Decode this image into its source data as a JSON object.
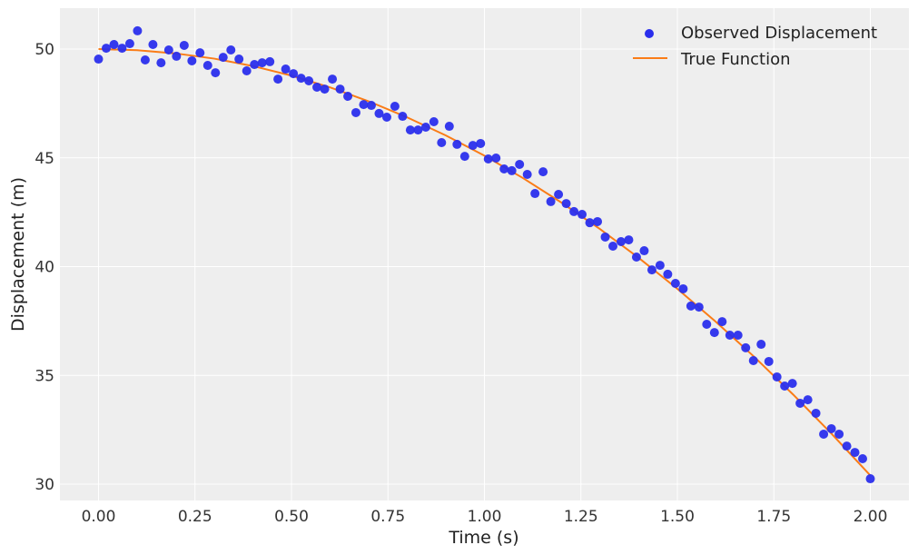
{
  "chart_data": {
    "type": "scatter",
    "title": "",
    "xlabel": "Time (s)",
    "ylabel": "Displacement (m)",
    "xlim": [
      -0.1,
      2.1
    ],
    "ylim": [
      29.25,
      51.88
    ],
    "xticks": [
      "0.00",
      "0.25",
      "0.50",
      "0.75",
      "1.00",
      "1.25",
      "1.50",
      "1.75",
      "2.00"
    ],
    "yticks": [
      "30",
      "35",
      "40",
      "45",
      "50"
    ],
    "grid": true,
    "legend_position": "top-right",
    "colors": {
      "observed": "#2a2eec",
      "true": "#fa7c17",
      "background": "#eeeeee"
    },
    "series": [
      {
        "name": "Observed Displacement",
        "kind": "scatter",
        "x": [
          0,
          0.02,
          0.04,
          0.061,
          0.081,
          0.101,
          0.121,
          0.141,
          0.162,
          0.182,
          0.202,
          0.222,
          0.242,
          0.263,
          0.283,
          0.303,
          0.323,
          0.343,
          0.364,
          0.384,
          0.404,
          0.424,
          0.444,
          0.465,
          0.485,
          0.505,
          0.525,
          0.545,
          0.566,
          0.586,
          0.606,
          0.626,
          0.646,
          0.667,
          0.687,
          0.707,
          0.727,
          0.747,
          0.768,
          0.788,
          0.808,
          0.828,
          0.848,
          0.869,
          0.889,
          0.909,
          0.929,
          0.949,
          0.97,
          0.99,
          1.01,
          1.03,
          1.051,
          1.071,
          1.091,
          1.111,
          1.131,
          1.152,
          1.172,
          1.192,
          1.212,
          1.232,
          1.253,
          1.273,
          1.293,
          1.313,
          1.333,
          1.354,
          1.374,
          1.394,
          1.414,
          1.434,
          1.455,
          1.475,
          1.495,
          1.515,
          1.535,
          1.556,
          1.576,
          1.596,
          1.616,
          1.636,
          1.657,
          1.677,
          1.697,
          1.717,
          1.737,
          1.758,
          1.778,
          1.798,
          1.818,
          1.838,
          1.859,
          1.879,
          1.899,
          1.919,
          1.939,
          1.96,
          1.98,
          2.0
        ],
        "y": [
          49.54,
          50.04,
          50.21,
          50.04,
          50.25,
          50.84,
          49.5,
          50.21,
          49.37,
          49.96,
          49.67,
          50.17,
          49.46,
          49.83,
          49.25,
          48.91,
          49.62,
          49.96,
          49.54,
          49.0,
          49.29,
          49.37,
          49.42,
          48.62,
          49.08,
          48.87,
          48.66,
          48.54,
          48.25,
          48.16,
          48.62,
          48.16,
          47.83,
          47.08,
          47.45,
          47.41,
          47.04,
          46.87,
          47.37,
          46.91,
          46.28,
          46.28,
          46.41,
          46.66,
          45.7,
          46.45,
          45.62,
          45.07,
          45.57,
          45.66,
          44.95,
          44.99,
          44.49,
          44.41,
          44.7,
          44.24,
          43.36,
          44.36,
          42.99,
          43.32,
          42.9,
          42.53,
          42.4,
          42.02,
          42.07,
          41.36,
          40.94,
          41.15,
          41.23,
          40.44,
          40.73,
          39.85,
          40.06,
          39.65,
          39.23,
          38.98,
          38.19,
          38.14,
          37.35,
          36.97,
          37.47,
          36.85,
          36.85,
          36.27,
          35.68,
          36.43,
          35.64,
          34.93,
          34.51,
          34.63,
          33.72,
          33.88,
          33.26,
          32.3,
          32.55,
          32.3,
          31.75,
          31.46,
          31.17,
          30.25
        ]
      },
      {
        "name": "True Function",
        "kind": "line",
        "x": [
          0,
          0.1,
          0.2,
          0.3,
          0.4,
          0.5,
          0.6,
          0.7,
          0.8,
          0.9,
          1.0,
          1.1,
          1.2,
          1.3,
          1.4,
          1.5,
          1.6,
          1.7,
          1.8,
          1.9,
          2.0
        ],
        "y": [
          50,
          49.95,
          49.8,
          49.56,
          49.22,
          48.78,
          48.24,
          47.6,
          46.86,
          46.03,
          45.1,
          44.07,
          42.94,
          41.72,
          40.4,
          38.98,
          37.46,
          35.84,
          34.12,
          32.31,
          30.4
        ]
      }
    ]
  }
}
